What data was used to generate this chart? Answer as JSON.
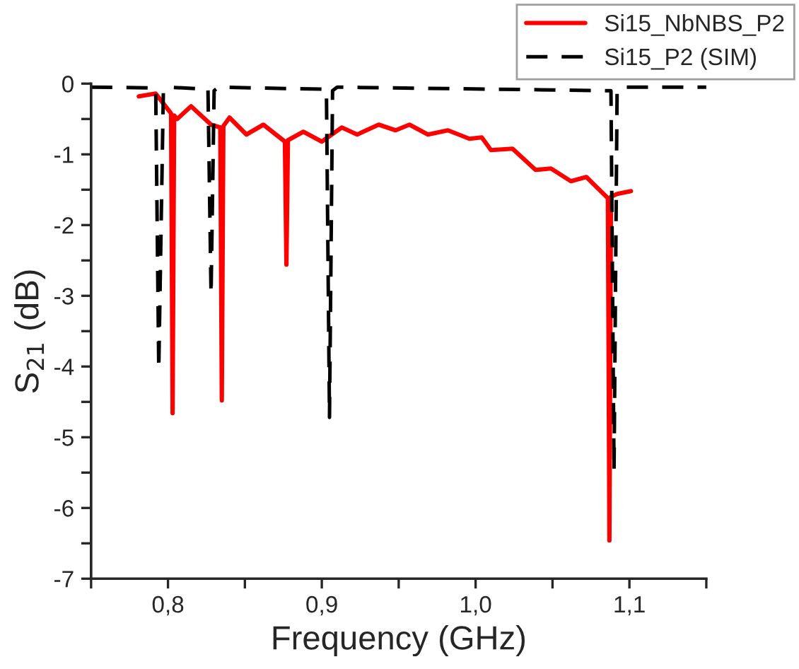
{
  "chart_data": {
    "type": "line",
    "xlabel": "Frequency (GHz)",
    "ylabel": "S$_{21}$ (dB)",
    "xlim": [
      0.75,
      1.15
    ],
    "ylim": [
      -7,
      0
    ],
    "xticks": [
      {
        "value": 0.75,
        "label": null
      },
      {
        "value": 0.8,
        "label": "0,8"
      },
      {
        "value": 0.85,
        "label": null
      },
      {
        "value": 0.9,
        "label": "0,9"
      },
      {
        "value": 0.95,
        "label": null
      },
      {
        "value": 1.0,
        "label": "1,0"
      },
      {
        "value": 1.05,
        "label": null
      },
      {
        "value": 1.1,
        "label": "1,1"
      },
      {
        "value": 1.15,
        "label": null
      }
    ],
    "yticks": [
      -7,
      {
        "value": -6.5,
        "label": null
      },
      -6,
      {
        "value": -5.5,
        "label": null
      },
      -5,
      {
        "value": -4.5,
        "label": null
      },
      -4,
      {
        "value": -3.5,
        "label": null
      },
      -3,
      {
        "value": -2.5,
        "label": null
      },
      -2,
      {
        "value": -1.5,
        "label": null
      },
      -1,
      {
        "value": -0.5,
        "label": null
      },
      0
    ],
    "grid": false,
    "legend": "top right",
    "marker": "none",
    "series": [
      {
        "name": "Si15_NbNBS_P2",
        "color": "#ff0000",
        "line_style": "solid",
        "x": [
          0.781,
          0.792,
          0.802,
          0.803,
          0.804,
          0.806,
          0.815,
          0.828,
          0.834,
          0.835,
          0.836,
          0.84,
          0.851,
          0.862,
          0.876,
          0.877,
          0.878,
          0.888,
          0.9,
          0.913,
          0.923,
          0.937,
          0.948,
          0.957,
          0.969,
          0.982,
          0.996,
          1.004,
          1.01,
          1.024,
          1.039,
          1.049,
          1.062,
          1.072,
          1.086,
          1.087,
          1.088,
          1.092,
          1.101
        ],
        "values": [
          -0.18,
          -0.14,
          -0.42,
          -4.66,
          -0.45,
          -0.5,
          -0.32,
          -0.58,
          -0.62,
          -4.48,
          -0.6,
          -0.48,
          -0.72,
          -0.58,
          -0.82,
          -2.56,
          -0.8,
          -0.68,
          -0.82,
          -0.62,
          -0.72,
          -0.58,
          -0.66,
          -0.58,
          -0.72,
          -0.66,
          -0.78,
          -0.76,
          -0.94,
          -0.92,
          -1.22,
          -1.2,
          -1.38,
          -1.32,
          -1.62,
          -6.46,
          -1.6,
          -1.56,
          -1.52
        ]
      },
      {
        "name": "Si15_P2 (SIM)",
        "color": "#000000",
        "line_style": "dashed",
        "x": [
          0.75,
          0.792,
          0.794,
          0.797,
          0.8,
          0.826,
          0.828,
          0.83,
          0.833,
          0.903,
          0.905,
          0.907,
          0.91,
          1.088,
          1.09,
          1.092,
          1.095,
          1.15
        ],
        "values": [
          -0.05,
          -0.06,
          -4.04,
          -0.1,
          -0.05,
          -0.08,
          -2.98,
          -0.1,
          -0.05,
          -0.08,
          -4.72,
          -0.1,
          -0.05,
          -0.1,
          -5.48,
          -0.1,
          -0.05,
          -0.05
        ]
      }
    ]
  }
}
